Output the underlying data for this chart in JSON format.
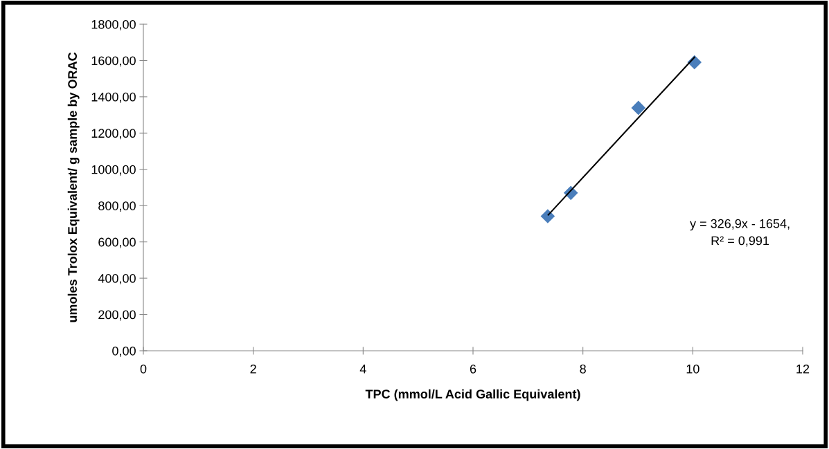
{
  "chart_data": {
    "type": "scatter",
    "xlabel": "TPC (mmol/L Acid Gallic Equivalent)",
    "ylabel": "umoles Trolox Equivalent/ g sample by ORAC",
    "series": [
      {
        "color": "#4a7ebb",
        "marker": "diamond",
        "x": [
          7.36,
          7.78,
          9.01,
          10.03
        ],
        "values": [
          742,
          870,
          1339,
          1590
        ]
      },
      {
        "type": "line",
        "color": "#000000",
        "marker": "none",
        "line_style": "solid",
        "x": [
          7.37,
          10.03
        ],
        "values": [
          749,
          1618
        ]
      }
    ],
    "annotations": [
      "y = 326,9x - 1654,\nR² = 0,991"
    ],
    "xlim": [
      0,
      12
    ],
    "xticks": [
      0,
      2,
      4,
      6,
      8,
      10,
      12
    ],
    "ylim": [
      0,
      1800
    ],
    "yticks": [
      {
        "value": 0,
        "label": "0,00"
      },
      {
        "value": 200,
        "label": "200,00"
      },
      {
        "value": 400,
        "label": "400,00"
      },
      {
        "value": 600,
        "label": "600,00"
      },
      {
        "value": 800,
        "label": "800,00"
      },
      {
        "value": 1000,
        "label": "1000,00"
      },
      {
        "value": 1200,
        "label": "1200,00"
      },
      {
        "value": 1400,
        "label": "1400,00"
      },
      {
        "value": 1600,
        "label": "1600,00"
      },
      {
        "value": 1800,
        "label": "1800,00"
      }
    ],
    "grid": false,
    "legend": false
  }
}
